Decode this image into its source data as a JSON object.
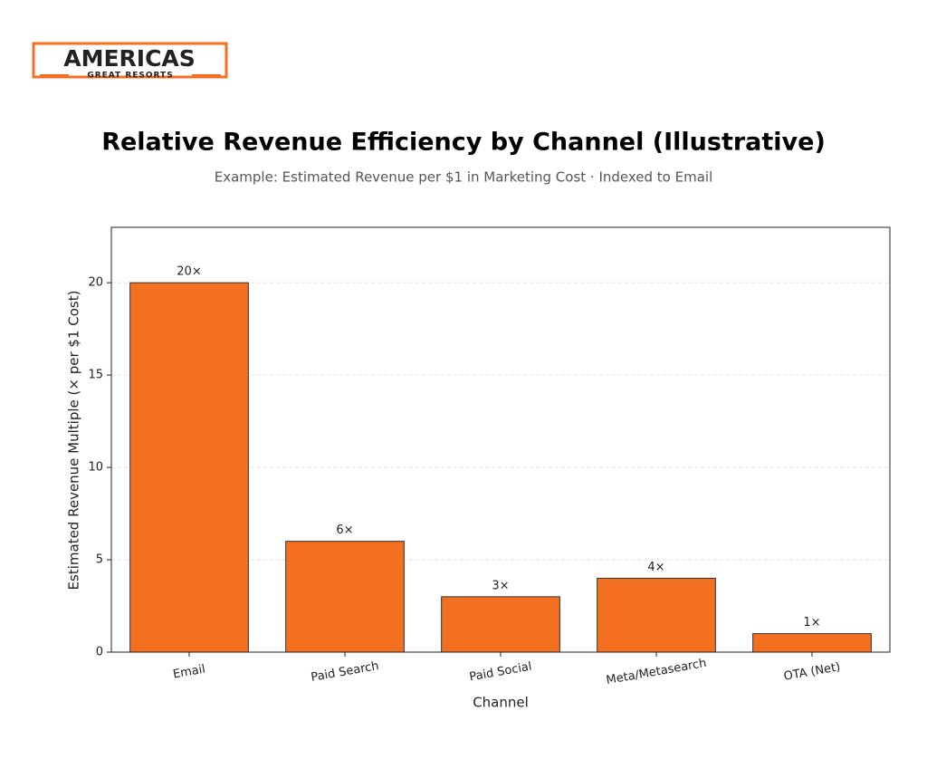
{
  "logo": {
    "name": "AMERICAS",
    "tagline": "GREAT RESORTS"
  },
  "chart_data": {
    "type": "bar",
    "title": "Relative Revenue Efficiency by Channel (Illustrative)",
    "subtitle": "Example: Estimated Revenue per $1 in Marketing Cost · Indexed to Email",
    "x_label": "Channel",
    "y_label": "Estimated Revenue Multiple (× per $1 Cost)",
    "categories": [
      "Email",
      "Paid Search",
      "Paid Social",
      "Meta/Metasearch",
      "OTA (Net)"
    ],
    "values": [
      20,
      6,
      3,
      4,
      1
    ],
    "value_labels": [
      "20×",
      "6×",
      "3×",
      "4×",
      "1×"
    ],
    "color": "#f37021",
    "ylim": [
      0,
      23
    ],
    "yticks": [
      0,
      5,
      10,
      15,
      20
    ],
    "grid": true
  }
}
